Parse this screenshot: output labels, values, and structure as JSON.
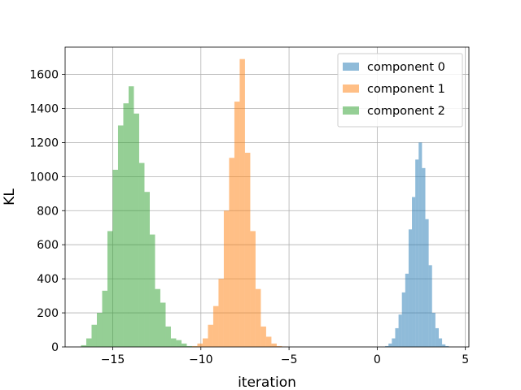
{
  "chart_data": {
    "type": "bar",
    "xlabel": "iteration",
    "ylabel": "KL",
    "xlim": [
      -17.7,
      5.2
    ],
    "ylim": [
      0,
      1760
    ],
    "xticks": [
      -15,
      -10,
      -5,
      0,
      5
    ],
    "xtick_labels": [
      "−15",
      "−10",
      "−5",
      "0",
      "5"
    ],
    "yticks": [
      0,
      200,
      400,
      600,
      800,
      1000,
      1200,
      1400,
      1600
    ],
    "ytick_labels": [
      "0",
      "200",
      "400",
      "600",
      "800",
      "1000",
      "1200",
      "1400",
      "1600"
    ],
    "grid": true,
    "legend_position": "top-right",
    "series": [
      {
        "name": "component 0",
        "color": "#1f77b4",
        "bin_edges": [
          0.45,
          0.64,
          0.83,
          1.02,
          1.21,
          1.4,
          1.59,
          1.78,
          1.97,
          2.16,
          2.35,
          2.54,
          2.73,
          2.92,
          3.11,
          3.3,
          3.49,
          3.68,
          3.87,
          4.06
        ],
        "counts": [
          5,
          20,
          50,
          110,
          190,
          320,
          430,
          690,
          880,
          1100,
          1200,
          1050,
          750,
          480,
          200,
          110,
          50,
          15,
          5
        ]
      },
      {
        "name": "component 1",
        "color": "#ff7f0e",
        "bin_edges": [
          -10.5,
          -10.2,
          -9.9,
          -9.6,
          -9.3,
          -9.0,
          -8.7,
          -8.4,
          -8.1,
          -7.8,
          -7.5,
          -7.2,
          -6.9,
          -6.6,
          -6.3,
          -6.0,
          -5.7,
          -5.4,
          -5.1
        ],
        "counts": [
          5,
          20,
          50,
          130,
          240,
          400,
          800,
          1110,
          1440,
          1690,
          1140,
          680,
          340,
          120,
          60,
          20,
          5,
          2
        ]
      },
      {
        "name": "component 2",
        "color": "#2ca02c",
        "bin_edges": [
          -16.8,
          -16.5,
          -16.2,
          -15.9,
          -15.6,
          -15.3,
          -15.0,
          -14.7,
          -14.4,
          -14.1,
          -13.8,
          -13.5,
          -13.2,
          -12.9,
          -12.6,
          -12.3,
          -12.0,
          -11.7,
          -11.4,
          -11.1,
          -10.8,
          -10.5,
          -10.2
        ],
        "counts": [
          10,
          50,
          130,
          200,
          330,
          680,
          1040,
          1300,
          1430,
          1530,
          1370,
          1080,
          910,
          660,
          340,
          260,
          120,
          50,
          40,
          20,
          5,
          2
        ]
      }
    ]
  }
}
